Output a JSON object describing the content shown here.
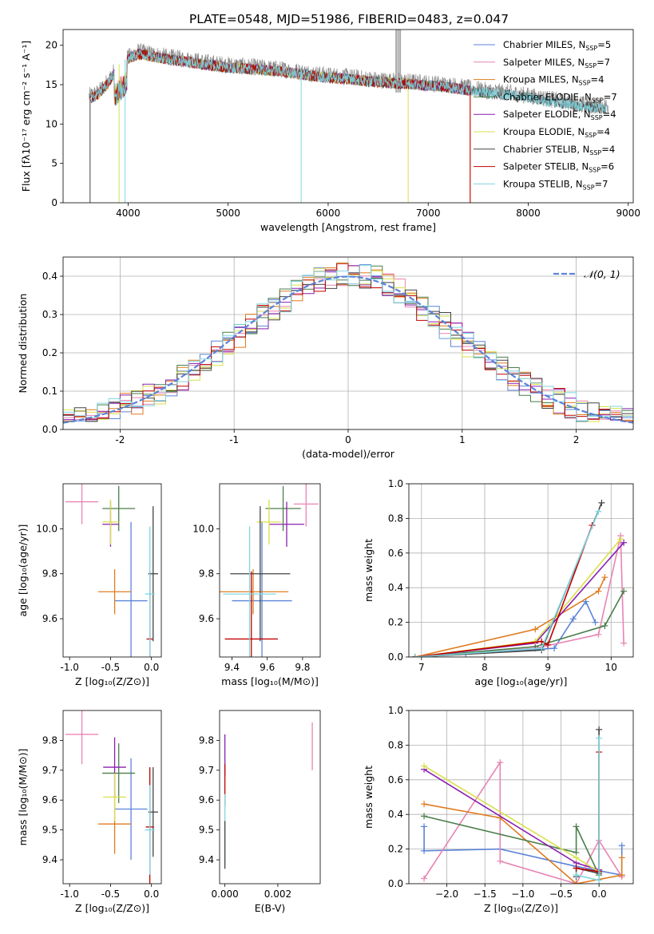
{
  "title": "PLATE=0548, MJD=51986, FIBERID=0483, z=0.047",
  "colors": {
    "Chabrier MILES": "#5b83d8",
    "Salpeter MILES": "#e884b3",
    "Kroupa MILES": "#e07b1f",
    "Chabrier ELODIE": "#4a7d4a",
    "Salpeter ELODIE": "#8a1fb0",
    "Kroupa ELODIE": "#d8e04a",
    "Chabrier STELIB": "#444444",
    "Salpeter STELIB": "#c00000",
    "Kroupa STELIB": "#7fd6e0"
  },
  "chart_data": [
    {
      "id": "spectrum",
      "type": "line",
      "xlabel": "wavelength [Angstrom, rest frame]",
      "ylabel": "Flux [fλ10⁻¹⁷ erg cm⁻² s⁻¹ A⁻¹]",
      "xlim": [
        3350,
        9050
      ],
      "ylim": [
        0,
        22
      ],
      "xticks": [
        4000,
        5000,
        6000,
        7000,
        8000,
        9000
      ],
      "yticks": [
        0,
        5,
        10,
        15,
        20
      ],
      "legend": "top-right",
      "legend_entries": [
        {
          "model": "Chabrier MILES",
          "label": "Chabrier MILES, N",
          "sub": "SSP",
          "eq": "=5"
        },
        {
          "model": "Salpeter MILES",
          "label": "Salpeter MILES, N",
          "sub": "SSP",
          "eq": "=7"
        },
        {
          "model": "Kroupa MILES",
          "label": "Kroupa MILES, N",
          "sub": "SSP",
          "eq": "=4"
        },
        {
          "model": "Chabrier ELODIE",
          "label": "Chabrier ELODIE, N",
          "sub": "SSP",
          "eq": "=7"
        },
        {
          "model": "Salpeter ELODIE",
          "label": "Salpeter ELODIE, N",
          "sub": "SSP",
          "eq": "=4"
        },
        {
          "model": "Kroupa ELODIE",
          "label": "Kroupa ELODIE, N",
          "sub": "SSP",
          "eq": "=4"
        },
        {
          "model": "Chabrier STELIB",
          "label": "Chabrier STELIB, N",
          "sub": "SSP",
          "eq": "=4"
        },
        {
          "model": "Salpeter STELIB",
          "label": "Salpeter STELIB, N",
          "sub": "SSP",
          "eq": "=6"
        },
        {
          "model": "Kroupa STELIB",
          "label": "Kroupa STELIB, N",
          "sub": "SSP",
          "eq": "=7"
        }
      ],
      "continuum": {
        "x": [
          3600,
          3700,
          3800,
          3900,
          4000,
          4100,
          4200,
          4400,
          4600,
          4800,
          5000,
          5200,
          5500,
          5800,
          6000,
          6200,
          6500,
          6800,
          7000,
          7200,
          7400,
          7600,
          7800,
          8000,
          8200,
          8400,
          8600,
          8800
        ],
        "y": [
          13.5,
          14,
          15.5,
          17.5,
          18.5,
          19.2,
          19.0,
          18.5,
          18.2,
          17.8,
          17.5,
          17.3,
          17.0,
          16.5,
          16.2,
          16.0,
          15.6,
          15.4,
          15.2,
          15.0,
          14.6,
          14.2,
          14.0,
          13.6,
          13.2,
          12.8,
          12.4,
          12.3
        ]
      },
      "data_spikes": [
        {
          "x": 6680,
          "y": 22
        },
        {
          "x": 6700,
          "y": 22
        },
        {
          "x": 6720,
          "y": 22
        }
      ]
    },
    {
      "id": "residuals",
      "type": "line",
      "xlabel": "(data-model)/error",
      "ylabel": "Normed distribution",
      "xlim": [
        -2.5,
        2.5
      ],
      "ylim": [
        0,
        0.45
      ],
      "xticks": [
        -2,
        -1,
        0,
        1,
        2
      ],
      "yticks": [
        0.0,
        0.1,
        0.2,
        0.3,
        0.4
      ],
      "grid": true,
      "legend": "top-right",
      "legend_label": "𝒩(0, 1)"
    },
    {
      "id": "age_vs_Z",
      "type": "scatter",
      "xlabel": "Z [log₁₀(Z/Z⊙)]",
      "ylabel": "age  [log₁₀(age/yr)]",
      "xlim": [
        -1.08,
        0.12
      ],
      "ylim": [
        9.43,
        10.2
      ],
      "xticks": [
        -1.0,
        -0.5,
        0.0
      ],
      "yticks": [
        9.6,
        9.8,
        10.0
      ],
      "points": [
        {
          "model": "Chabrier MILES",
          "x": -0.25,
          "y": 9.68,
          "xerr": 0.2,
          "yerr": 0.35
        },
        {
          "model": "Salpeter MILES",
          "x": -0.85,
          "y": 10.12,
          "xerr": 0.2,
          "yerr": 0.1
        },
        {
          "model": "Kroupa MILES",
          "x": -0.45,
          "y": 9.72,
          "xerr": 0.2,
          "yerr": 0.1
        },
        {
          "model": "Chabrier ELODIE",
          "x": -0.4,
          "y": 10.09,
          "xerr": 0.2,
          "yerr": 0.1
        },
        {
          "model": "Salpeter ELODIE",
          "x": -0.5,
          "y": 10.02,
          "xerr": 0.1,
          "yerr": 0.1
        },
        {
          "model": "Kroupa ELODIE",
          "x": -0.5,
          "y": 10.03,
          "xerr": 0.1,
          "yerr": 0.1
        },
        {
          "model": "Chabrier STELIB",
          "x": 0.02,
          "y": 9.8,
          "xerr": 0.06,
          "yerr": 0.3
        },
        {
          "model": "Salpeter STELIB",
          "x": -0.02,
          "y": 9.51,
          "xerr": 0.04,
          "yerr": 0.3
        },
        {
          "model": "Kroupa STELIB",
          "x": -0.02,
          "y": 9.71,
          "xerr": 0.06,
          "yerr": 0.3
        }
      ]
    },
    {
      "id": "age_vs_mass",
      "type": "scatter",
      "xlabel": "mass [log₁₀(M/M⊙)]",
      "ylabel": "",
      "xlim": [
        9.33,
        9.9
      ],
      "ylim": [
        9.43,
        10.2
      ],
      "xticks": [
        9.4,
        9.6,
        9.8
      ],
      "yticks": [
        9.6,
        9.8,
        10.0
      ],
      "points": [
        {
          "model": "Chabrier MILES",
          "x": 9.57,
          "y": 9.68,
          "xerr": 0.17,
          "yerr": 0.35
        },
        {
          "model": "Salpeter MILES",
          "x": 9.82,
          "y": 10.11,
          "xerr": 0.07,
          "yerr": 0.1
        },
        {
          "model": "Kroupa MILES",
          "x": 9.52,
          "y": 9.72,
          "xerr": 0.2,
          "yerr": 0.1
        },
        {
          "model": "Chabrier ELODIE",
          "x": 9.69,
          "y": 10.09,
          "xerr": 0.1,
          "yerr": 0.1
        },
        {
          "model": "Salpeter ELODIE",
          "x": 9.71,
          "y": 10.02,
          "xerr": 0.1,
          "yerr": 0.1
        },
        {
          "model": "Kroupa ELODIE",
          "x": 9.61,
          "y": 10.03,
          "xerr": 0.07,
          "yerr": 0.1
        },
        {
          "model": "Chabrier STELIB",
          "x": 9.56,
          "y": 9.8,
          "xerr": 0.17,
          "yerr": 0.3
        },
        {
          "model": "Salpeter STELIB",
          "x": 9.51,
          "y": 9.51,
          "xerr": 0.15,
          "yerr": 0.3
        },
        {
          "model": "Kroupa STELIB",
          "x": 9.5,
          "y": 9.71,
          "xerr": 0.15,
          "yerr": 0.3
        }
      ]
    },
    {
      "id": "weight_vs_age",
      "type": "line",
      "xlabel": "age  [log₁₀(age/yr)]",
      "ylabel": "mass weight",
      "xlim": [
        6.8,
        10.35
      ],
      "ylim": [
        0,
        1
      ],
      "xticks": [
        7,
        8,
        9,
        10
      ],
      "yticks": [
        0.0,
        0.2,
        0.4,
        0.6,
        0.8,
        1.0
      ],
      "grid": true,
      "series": [
        {
          "model": "Chabrier MILES",
          "x": [
            6.9,
            7.7,
            9.1,
            9.4,
            9.6,
            9.75
          ],
          "y": [
            0.0,
            0.02,
            0.05,
            0.22,
            0.32,
            0.2
          ]
        },
        {
          "model": "Salpeter MILES",
          "x": [
            6.9,
            8.8,
            9.8,
            10.15,
            10.2
          ],
          "y": [
            0.0,
            0.05,
            0.13,
            0.7,
            0.08
          ]
        },
        {
          "model": "Kroupa MILES",
          "x": [
            6.9,
            8.8,
            9.8,
            9.9
          ],
          "y": [
            0.0,
            0.16,
            0.38,
            0.46
          ]
        },
        {
          "model": "Chabrier ELODIE",
          "x": [
            6.9,
            8.8,
            9.9,
            10.2
          ],
          "y": [
            0.0,
            0.06,
            0.18,
            0.38
          ]
        },
        {
          "model": "Salpeter ELODIE",
          "x": [
            6.9,
            8.8,
            10.2
          ],
          "y": [
            0.0,
            0.08,
            0.66
          ]
        },
        {
          "model": "Kroupa ELODIE",
          "x": [
            6.9,
            8.8,
            10.15
          ],
          "y": [
            0.0,
            0.09,
            0.68
          ]
        },
        {
          "model": "Chabrier STELIB",
          "x": [
            6.9,
            8.9,
            9.85
          ],
          "y": [
            0.0,
            0.04,
            0.89
          ]
        },
        {
          "model": "Salpeter STELIB",
          "x": [
            6.9,
            8.9,
            9.0,
            9.7
          ],
          "y": [
            0.0,
            0.09,
            0.07,
            0.76
          ]
        },
        {
          "model": "Kroupa STELIB",
          "x": [
            6.9,
            8.9,
            9.8
          ],
          "y": [
            0.0,
            0.05,
            0.84
          ]
        }
      ]
    },
    {
      "id": "mass_vs_Z",
      "type": "scatter",
      "xlabel": "Z [log₁₀(Z/Z⊙)]",
      "ylabel": "mass [log₁₀(M/M⊙)]",
      "xlim": [
        -1.08,
        0.12
      ],
      "ylim": [
        9.32,
        9.9
      ],
      "xticks": [
        -1.0,
        -0.5,
        0.0
      ],
      "yticks": [
        9.4,
        9.5,
        9.6,
        9.7,
        9.8
      ],
      "points": [
        {
          "model": "Chabrier MILES",
          "x": -0.25,
          "y": 9.57,
          "xerr": 0.2,
          "yerr": 0.17
        },
        {
          "model": "Salpeter MILES",
          "x": -0.85,
          "y": 9.82,
          "xerr": 0.2,
          "yerr": 0.1
        },
        {
          "model": "Kroupa MILES",
          "x": -0.45,
          "y": 9.52,
          "xerr": 0.2,
          "yerr": 0.1
        },
        {
          "model": "Chabrier ELODIE",
          "x": -0.4,
          "y": 9.69,
          "xerr": 0.2,
          "yerr": 0.1
        },
        {
          "model": "Salpeter ELODIE",
          "x": -0.45,
          "y": 9.71,
          "xerr": 0.14,
          "yerr": 0.1
        },
        {
          "model": "Kroupa ELODIE",
          "x": -0.45,
          "y": 9.61,
          "xerr": 0.14,
          "yerr": 0.08
        },
        {
          "model": "Chabrier STELIB",
          "x": 0.02,
          "y": 9.56,
          "xerr": 0.06,
          "yerr": 0.15
        },
        {
          "model": "Salpeter STELIB",
          "x": -0.02,
          "y": 9.51,
          "xerr": 0.05,
          "yerr": 0.2
        },
        {
          "model": "Kroupa STELIB",
          "x": -0.02,
          "y": 9.5,
          "xerr": 0.06,
          "yerr": 0.15
        }
      ]
    },
    {
      "id": "mass_vs_ebv",
      "type": "scatter",
      "xlabel": "E(B-V)",
      "ylabel": "",
      "xlim": [
        -0.0002,
        0.0036
      ],
      "ylim": [
        9.32,
        9.9
      ],
      "xticks": [
        0.0,
        0.002
      ],
      "xtick_labels": [
        "0.000",
        "0.002"
      ],
      "yticks": [
        9.4,
        9.5,
        9.6,
        9.7,
        9.8
      ],
      "points": [
        {
          "model": "Salpeter MILES",
          "x": 0.0033,
          "y": 9.78,
          "xerr": 0,
          "yerr": 0.08
        },
        {
          "model": "Salpeter ELODIE",
          "x": 0.0,
          "y": 9.75,
          "xerr": 0,
          "yerr": 0.07
        },
        {
          "model": "Salpeter STELIB",
          "x": 0.0,
          "y": 9.65,
          "xerr": 0,
          "yerr": 0.07
        },
        {
          "model": "Kroupa STELIB",
          "x": 0.0,
          "y": 9.5,
          "xerr": 0,
          "yerr": 0.12
        },
        {
          "model": "Chabrier STELIB",
          "x": 0.0,
          "y": 9.45,
          "xerr": 0,
          "yerr": 0.08
        }
      ]
    },
    {
      "id": "weight_vs_Z",
      "type": "line",
      "xlabel": "Z [log₁₀(Z/Z⊙)]",
      "ylabel": "mass weight",
      "xlim": [
        -2.5,
        0.45
      ],
      "ylim": [
        0,
        1
      ],
      "xticks": [
        -2.0,
        -1.5,
        -1.0,
        -0.5,
        0.0
      ],
      "yticks": [
        0.0,
        0.2,
        0.4,
        0.6,
        0.8,
        1.0
      ],
      "grid": true,
      "series": [
        {
          "model": "Chabrier MILES",
          "x": [
            -2.3,
            -2.3,
            -1.3,
            -0.3,
            0.3,
            0.3
          ],
          "y": [
            0.33,
            0.19,
            0.2,
            0.1,
            0.05,
            0.22
          ]
        },
        {
          "model": "Salpeter MILES",
          "x": [
            -2.3,
            -1.3,
            -1.3,
            -0.3,
            0.0,
            0.3
          ],
          "y": [
            0.03,
            0.7,
            0.13,
            0.0,
            0.25,
            0.04
          ]
        },
        {
          "model": "Kroupa MILES",
          "x": [
            -2.3,
            -1.3,
            -0.3,
            0.3,
            0.3
          ],
          "y": [
            0.46,
            0.38,
            0.0,
            0.05,
            0.15
          ]
        },
        {
          "model": "Chabrier ELODIE",
          "x": [
            -2.3,
            -0.3,
            -0.3,
            0.0
          ],
          "y": [
            0.39,
            0.18,
            0.33,
            0.05
          ]
        },
        {
          "model": "Salpeter ELODIE",
          "x": [
            -2.3,
            -0.3,
            0.0
          ],
          "y": [
            0.66,
            0.12,
            0.08
          ]
        },
        {
          "model": "Kroupa ELODIE",
          "x": [
            -2.3,
            -0.3,
            0.0
          ],
          "y": [
            0.68,
            0.15,
            0.07
          ]
        },
        {
          "model": "Chabrier STELIB",
          "x": [
            -0.3,
            -0.3,
            0.0,
            0.0
          ],
          "y": [
            0.04,
            0.09,
            0.06,
            0.89
          ]
        },
        {
          "model": "Salpeter STELIB",
          "x": [
            -0.3,
            0.0,
            0.0
          ],
          "y": [
            0.09,
            0.07,
            0.76
          ]
        },
        {
          "model": "Kroupa STELIB",
          "x": [
            -0.3,
            0.0,
            0.0
          ],
          "y": [
            0.05,
            0.02,
            0.84
          ]
        }
      ]
    }
  ]
}
